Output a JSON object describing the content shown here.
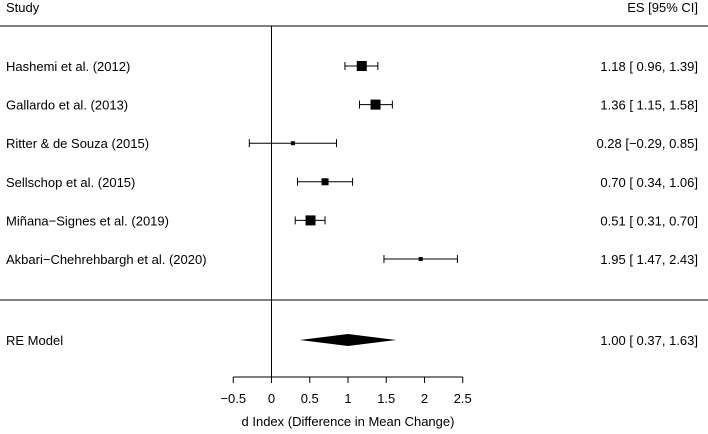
{
  "chart_data": {
    "type": "forest",
    "header_study": "Study",
    "header_es": "ES [95% CI]",
    "studies": [
      {
        "label": "Hashemi et al. (2012)",
        "es": 1.18,
        "lower": 0.96,
        "upper": 1.39,
        "ci_text": "1.18 [ 0.96, 1.39]",
        "weight": 3
      },
      {
        "label": "Gallardo et al. (2013)",
        "es": 1.36,
        "lower": 1.15,
        "upper": 1.58,
        "ci_text": "1.36 [ 1.15, 1.58]",
        "weight": 3
      },
      {
        "label": "Ritter & de Souza (2015)",
        "es": 0.28,
        "lower": -0.29,
        "upper": 0.85,
        "ci_text": "0.28 [−0.29, 0.85]",
        "weight": 1
      },
      {
        "label": "Sellschop et al. (2015)",
        "es": 0.7,
        "lower": 0.34,
        "upper": 1.06,
        "ci_text": "0.70 [ 0.34, 1.06]",
        "weight": 2
      },
      {
        "label": "Miñana−Signes et al. (2019)",
        "es": 0.51,
        "lower": 0.31,
        "upper": 0.7,
        "ci_text": "0.51 [ 0.31, 0.70]",
        "weight": 3
      },
      {
        "label": "Akbari−Chehrehbargh et al. (2020)",
        "es": 1.95,
        "lower": 1.47,
        "upper": 2.43,
        "ci_text": "1.95 [ 1.47, 2.43]",
        "weight": 1
      }
    ],
    "summary": {
      "label": "RE Model",
      "es": 1.0,
      "lower": 0.37,
      "upper": 1.63,
      "ci_text": "1.00 [ 0.37, 1.63]"
    },
    "xlabel": "d Index (Difference in Mean Change)",
    "xlim": [
      -0.5,
      2.5
    ],
    "xticks": [
      -0.5,
      0,
      0.5,
      1,
      1.5,
      2,
      2.5
    ],
    "xtick_labels": [
      "−0.5",
      "0",
      "0.5",
      "1",
      "1.5",
      "2",
      "2.5"
    ],
    "reference_line": 0
  }
}
